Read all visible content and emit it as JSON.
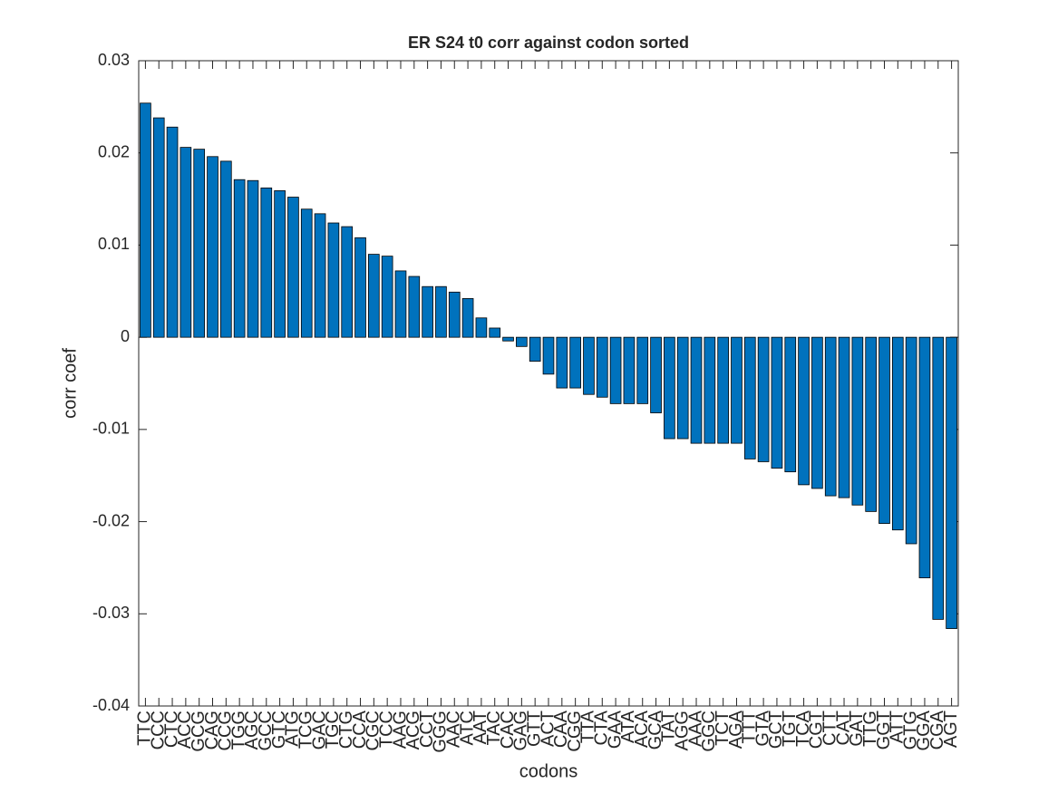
{
  "chart_data": {
    "type": "bar",
    "title": "ER S24 t0 corr against codon sorted",
    "xlabel": "codons",
    "ylabel": "corr coef",
    "color": "#0072bd",
    "categories": [
      "TTC",
      "CCC",
      "CTC",
      "ACC",
      "GCG",
      "CAG",
      "CCG",
      "TGG",
      "AGC",
      "GCC",
      "GTC",
      "ATG",
      "TCG",
      "GAC",
      "TGC",
      "CTG",
      "CCA",
      "CGC",
      "TCC",
      "AAG",
      "ACG",
      "CCT",
      "GGG",
      "AAC",
      "ATC",
      "AAT",
      "TAC",
      "CAC",
      "GAG",
      "GTT",
      "ACT",
      "CAA",
      "CGG",
      "TTA",
      "CTA",
      "GAA",
      "ATA",
      "ACA",
      "GCA",
      "TAT",
      "AGG",
      "AAA",
      "GGC",
      "TCT",
      "AGA",
      "TTT",
      "GTA",
      "GCT",
      "TGT",
      "TCA",
      "CGT",
      "CTT",
      "CAT",
      "GAT",
      "TTG",
      "GGT",
      "ATT",
      "GTG",
      "GGA",
      "CGA",
      "AGT"
    ],
    "values": [
      0.0254,
      0.0238,
      0.0228,
      0.0206,
      0.0204,
      0.0196,
      0.0191,
      0.0171,
      0.017,
      0.0162,
      0.0159,
      0.0152,
      0.0139,
      0.0134,
      0.0124,
      0.012,
      0.0108,
      0.009,
      0.0088,
      0.0072,
      0.0066,
      0.0055,
      0.0055,
      0.0049,
      0.0042,
      0.0021,
      0.001,
      -0.0004,
      -0.001,
      -0.0026,
      -0.004,
      -0.0055,
      -0.0055,
      -0.0062,
      -0.0065,
      -0.0072,
      -0.0072,
      -0.0072,
      -0.0082,
      -0.011,
      -0.011,
      -0.0115,
      -0.0115,
      -0.0115,
      -0.0115,
      -0.0132,
      -0.0135,
      -0.0142,
      -0.0146,
      -0.016,
      -0.0164,
      -0.0172,
      -0.0174,
      -0.0182,
      -0.0189,
      -0.0202,
      -0.0209,
      -0.0224,
      -0.0261,
      -0.0306,
      -0.0316
    ],
    "ylim": [
      -0.04,
      0.03
    ],
    "yticks": [
      -0.04,
      -0.03,
      -0.02,
      -0.01,
      0,
      0.01,
      0.02,
      0.03
    ],
    "grid": false
  }
}
